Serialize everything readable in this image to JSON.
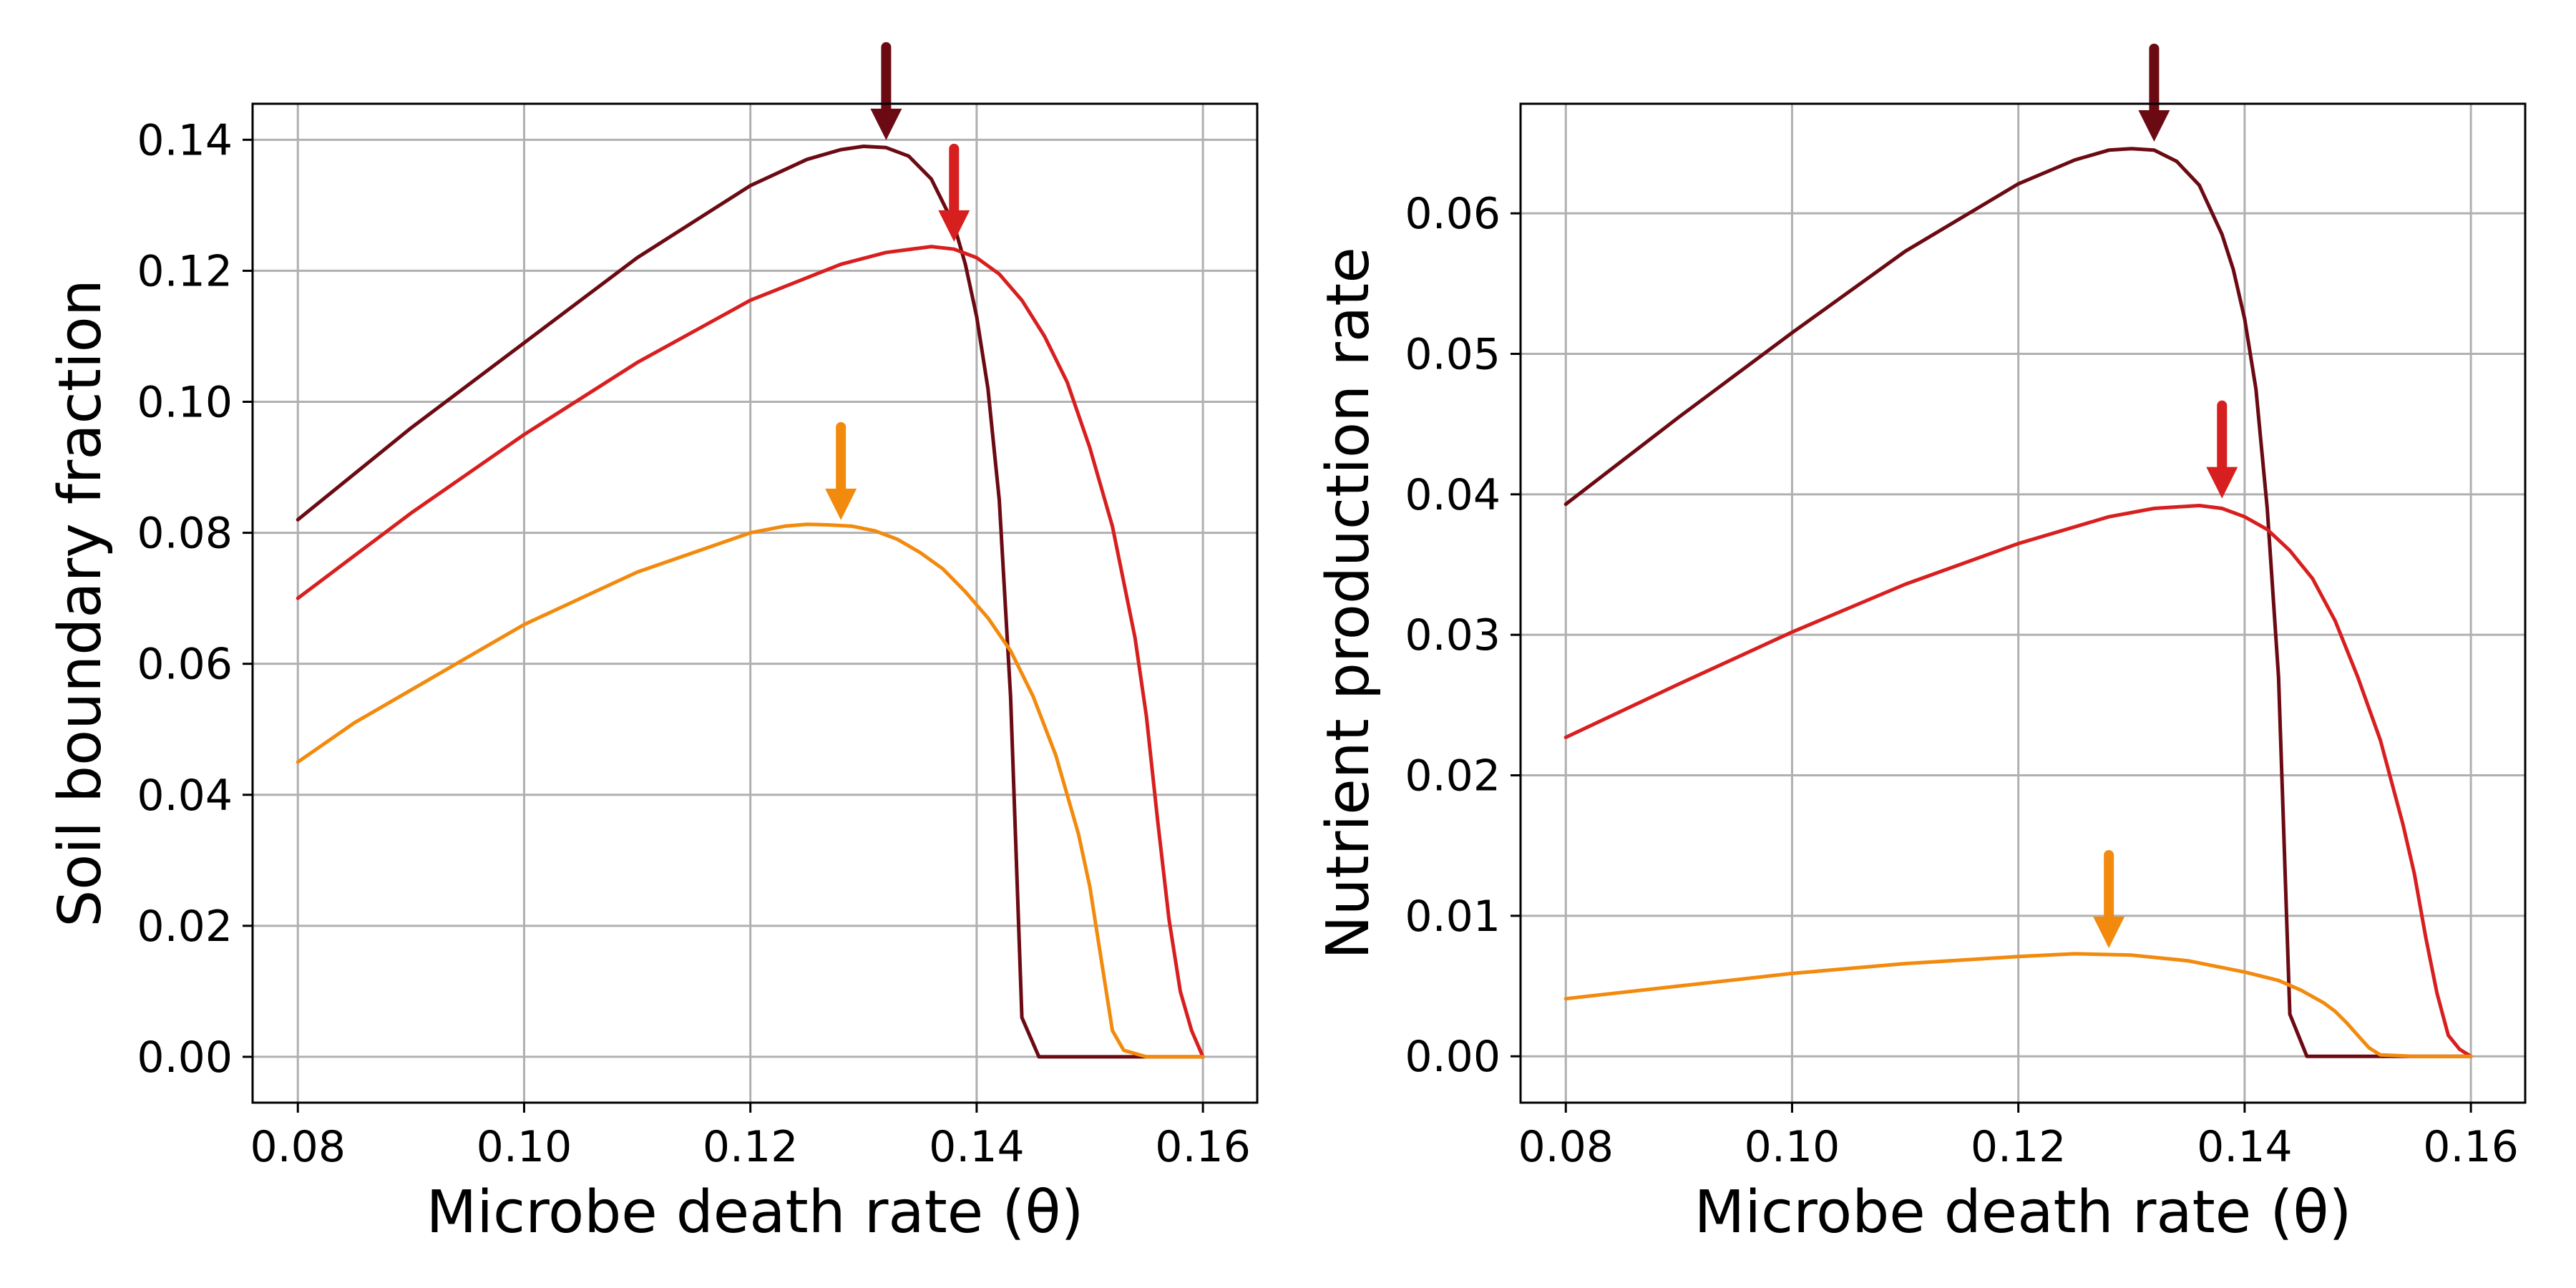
{
  "chart_data": [
    {
      "type": "line",
      "title": "",
      "xlabel": "Microbe death rate (θ)",
      "ylabel": "Soil boundary fraction",
      "xlim": [
        0.076,
        0.1648
      ],
      "ylim": [
        -0.007,
        0.1455
      ],
      "xticks": [
        0.08,
        0.1,
        0.12,
        0.14,
        0.16
      ],
      "xtick_labels": [
        "0.08",
        "0.10",
        "0.12",
        "0.14",
        "0.16"
      ],
      "yticks": [
        0.0,
        0.02,
        0.04,
        0.06,
        0.08,
        0.1,
        0.12,
        0.14
      ],
      "ytick_labels": [
        "0.00",
        "0.02",
        "0.04",
        "0.06",
        "0.08",
        "0.10",
        "0.12",
        "0.14"
      ],
      "grid": true,
      "series": [
        {
          "color": "#6b0a12",
          "x": [
            0.08,
            0.09,
            0.1,
            0.11,
            0.12,
            0.125,
            0.128,
            0.13,
            0.132,
            0.134,
            0.136,
            0.138,
            0.139,
            0.14,
            0.141,
            0.142,
            0.143,
            0.144,
            0.1455,
            0.15,
            0.155,
            0.16
          ],
          "y": [
            0.082,
            0.096,
            0.109,
            0.122,
            0.133,
            0.137,
            0.1385,
            0.139,
            0.1388,
            0.1375,
            0.134,
            0.127,
            0.121,
            0.113,
            0.102,
            0.085,
            0.055,
            0.006,
            0.0,
            0.0,
            0.0,
            0.0
          ]
        },
        {
          "color": "#d81f1f",
          "x": [
            0.08,
            0.09,
            0.1,
            0.11,
            0.12,
            0.128,
            0.132,
            0.136,
            0.138,
            0.14,
            0.142,
            0.144,
            0.146,
            0.148,
            0.15,
            0.152,
            0.154,
            0.155,
            0.156,
            0.157,
            0.158,
            0.159,
            0.16
          ],
          "y": [
            0.07,
            0.083,
            0.095,
            0.106,
            0.1155,
            0.121,
            0.1228,
            0.1237,
            0.1233,
            0.122,
            0.1195,
            0.1155,
            0.11,
            0.103,
            0.093,
            0.081,
            0.064,
            0.052,
            0.036,
            0.021,
            0.01,
            0.004,
            0.0
          ]
        },
        {
          "color": "#f28a0e",
          "x": [
            0.08,
            0.085,
            0.09,
            0.095,
            0.1,
            0.105,
            0.11,
            0.115,
            0.12,
            0.123,
            0.125,
            0.127,
            0.129,
            0.131,
            0.133,
            0.135,
            0.137,
            0.139,
            0.141,
            0.143,
            0.145,
            0.147,
            0.149,
            0.15,
            0.151,
            0.152,
            0.153,
            0.155,
            0.158,
            0.16
          ],
          "y": [
            0.045,
            0.051,
            0.056,
            0.061,
            0.066,
            0.07,
            0.074,
            0.077,
            0.08,
            0.081,
            0.0813,
            0.0812,
            0.081,
            0.0803,
            0.079,
            0.077,
            0.0745,
            0.071,
            0.067,
            0.062,
            0.055,
            0.046,
            0.034,
            0.026,
            0.015,
            0.004,
            0.001,
            0.0,
            0.0,
            0.0
          ]
        }
      ],
      "arrows": [
        {
          "color": "#6b0a12",
          "x": 0.132,
          "y": 0.1395
        },
        {
          "color": "#d81f1f",
          "x": 0.138,
          "y": 0.124
        },
        {
          "color": "#f28a0e",
          "x": 0.128,
          "y": 0.0815
        }
      ]
    },
    {
      "type": "line",
      "title": "",
      "xlabel": "Microbe death rate (θ)",
      "ylabel": "Nutrient production rate",
      "xlim": [
        0.076,
        0.1648
      ],
      "ylim": [
        -0.0033,
        0.0678
      ],
      "xticks": [
        0.08,
        0.1,
        0.12,
        0.14,
        0.16
      ],
      "xtick_labels": [
        "0.08",
        "0.10",
        "0.12",
        "0.14",
        "0.16"
      ],
      "yticks": [
        0.0,
        0.01,
        0.02,
        0.03,
        0.04,
        0.05,
        0.06
      ],
      "ytick_labels": [
        "0.00",
        "0.01",
        "0.02",
        "0.03",
        "0.04",
        "0.05",
        "0.06"
      ],
      "grid": true,
      "series": [
        {
          "color": "#6b0a12",
          "x": [
            0.08,
            0.09,
            0.1,
            0.11,
            0.12,
            0.125,
            0.128,
            0.13,
            0.132,
            0.134,
            0.136,
            0.138,
            0.139,
            0.14,
            0.141,
            0.142,
            0.143,
            0.144,
            0.1455,
            0.15,
            0.155,
            0.16
          ],
          "y": [
            0.0393,
            0.0455,
            0.0515,
            0.0573,
            0.0621,
            0.0638,
            0.0645,
            0.0646,
            0.0645,
            0.0637,
            0.062,
            0.0585,
            0.056,
            0.0525,
            0.0475,
            0.039,
            0.027,
            0.003,
            0.0,
            0.0,
            0.0,
            0.0
          ]
        },
        {
          "color": "#d81f1f",
          "x": [
            0.08,
            0.09,
            0.1,
            0.11,
            0.12,
            0.128,
            0.132,
            0.136,
            0.138,
            0.14,
            0.142,
            0.144,
            0.146,
            0.148,
            0.15,
            0.152,
            0.154,
            0.155,
            0.156,
            0.157,
            0.158,
            0.159,
            0.16
          ],
          "y": [
            0.0227,
            0.0265,
            0.0302,
            0.0336,
            0.0365,
            0.0384,
            0.039,
            0.0392,
            0.039,
            0.0384,
            0.0375,
            0.036,
            0.034,
            0.031,
            0.027,
            0.0225,
            0.0165,
            0.013,
            0.0085,
            0.0045,
            0.0015,
            0.0005,
            0.0
          ]
        },
        {
          "color": "#f28a0e",
          "x": [
            0.08,
            0.09,
            0.1,
            0.11,
            0.12,
            0.125,
            0.13,
            0.135,
            0.14,
            0.143,
            0.145,
            0.147,
            0.148,
            0.149,
            0.15,
            0.151,
            0.152,
            0.155,
            0.16
          ],
          "y": [
            0.0041,
            0.005,
            0.0059,
            0.0066,
            0.0071,
            0.0073,
            0.0072,
            0.0068,
            0.006,
            0.0054,
            0.0047,
            0.0038,
            0.0032,
            0.0024,
            0.0015,
            0.0006,
            0.0001,
            0.0,
            0.0
          ]
        }
      ],
      "arrows": [
        {
          "color": "#6b0a12",
          "x": 0.132,
          "y": 0.0649
        },
        {
          "color": "#d81f1f",
          "x": 0.138,
          "y": 0.0395
        },
        {
          "color": "#f28a0e",
          "x": 0.128,
          "y": 0.0075
        }
      ]
    }
  ]
}
